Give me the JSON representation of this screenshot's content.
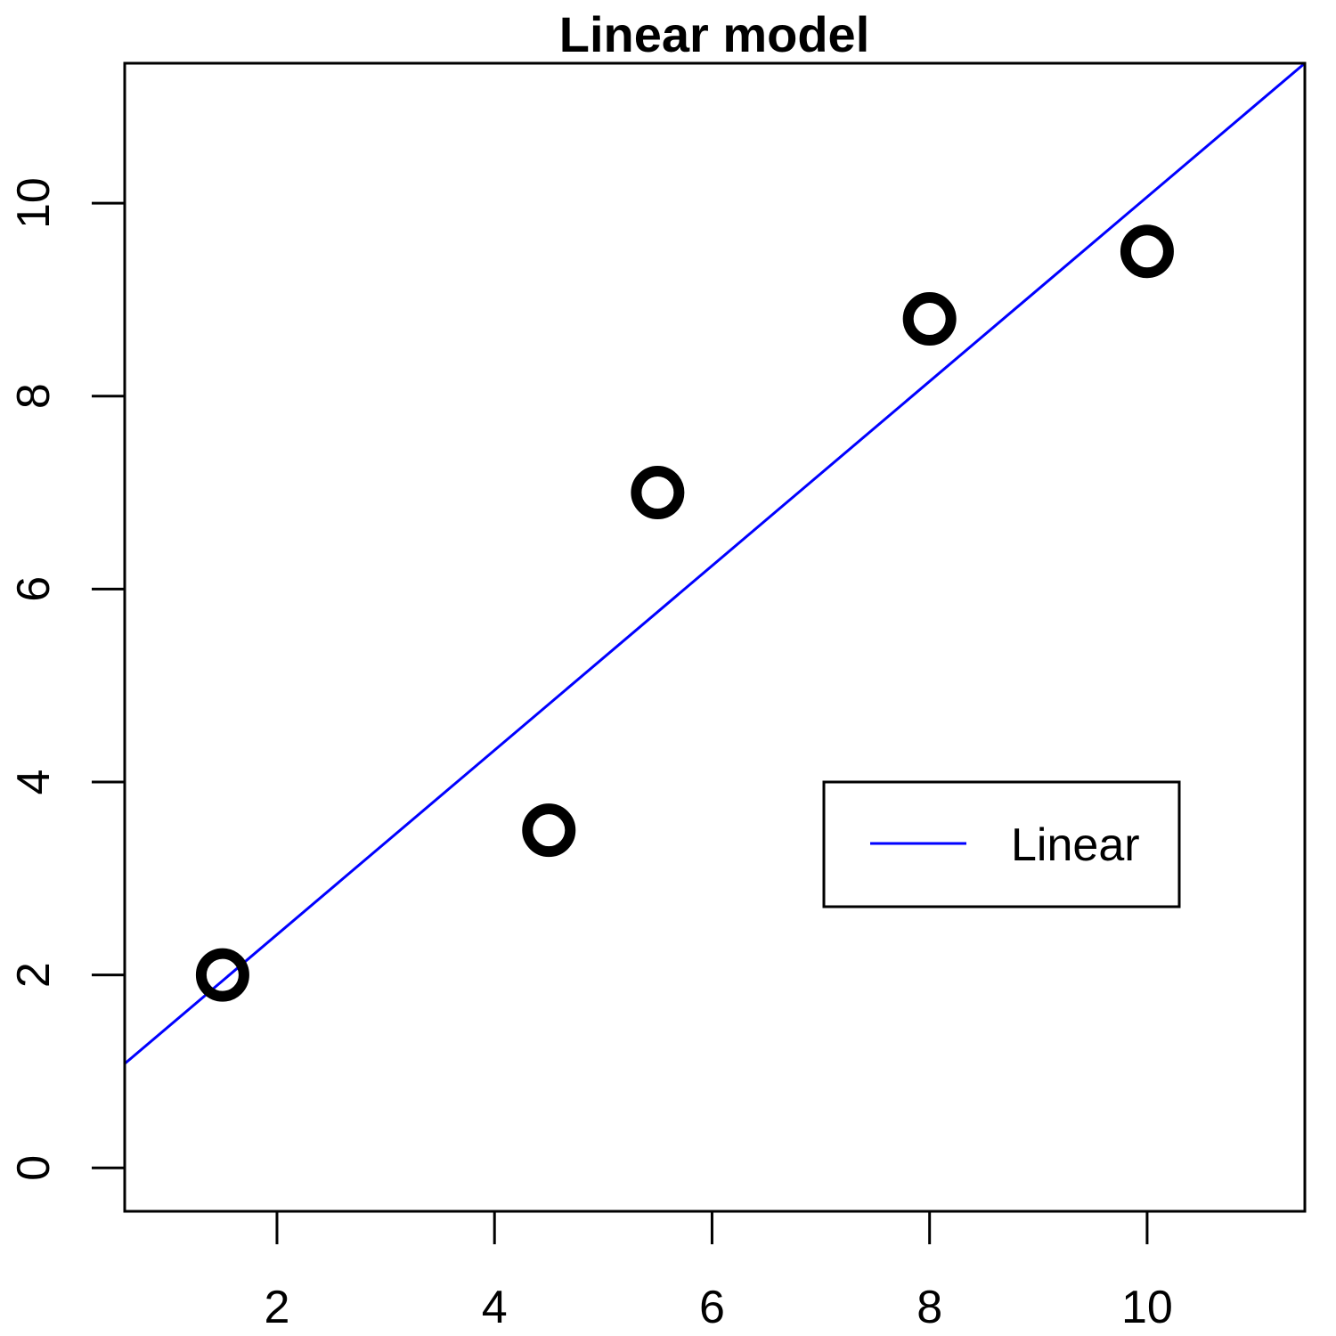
{
  "chart_data": {
    "type": "scatter",
    "title": "Linear model",
    "xlabel": "",
    "ylabel": "",
    "xlim": [
      0.6,
      11.45
    ],
    "ylim": [
      -0.45,
      11.45
    ],
    "x_ticks": [
      2,
      4,
      6,
      8,
      10
    ],
    "y_ticks": [
      0,
      2,
      4,
      6,
      8,
      10
    ],
    "grid": false,
    "points": [
      {
        "x": 1.5,
        "y": 2.0
      },
      {
        "x": 4.5,
        "y": 3.5
      },
      {
        "x": 5.5,
        "y": 7.0
      },
      {
        "x": 8.0,
        "y": 8.8
      },
      {
        "x": 10.0,
        "y": 9.5
      }
    ],
    "point_style": "open-circle",
    "point_color": "#000000",
    "fit_line": {
      "name": "Linear",
      "color": "#0000ff",
      "x": [
        0.6,
        11.45
      ],
      "y": [
        1.08,
        11.45
      ]
    },
    "legend": {
      "placement": "right",
      "entries": [
        {
          "label": "Linear",
          "color": "#0000ff",
          "style": "line"
        }
      ]
    }
  }
}
